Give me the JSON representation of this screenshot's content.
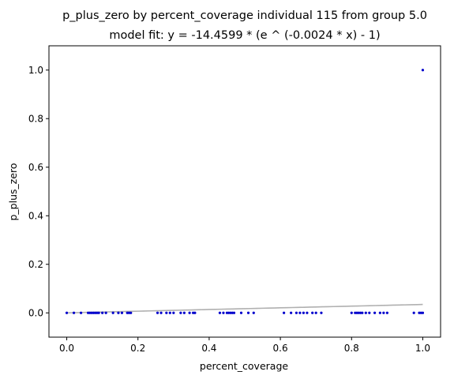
{
  "chart_data": {
    "type": "scatter",
    "title": "p_plus_zero by percent_coverage individual 115 from group 5.0",
    "subtitle": "model fit: y = -14.4599 * (e ^ (-0.0024 * x) - 1)",
    "xlabel": "percent_coverage",
    "ylabel": "p_plus_zero",
    "xlim": [
      -0.05,
      1.05
    ],
    "ylim": [
      -0.1,
      1.1
    ],
    "xticks": [
      0.0,
      0.2,
      0.4,
      0.6,
      0.8,
      1.0
    ],
    "xtick_labels": [
      "0.0",
      "0.2",
      "0.4",
      "0.6",
      "0.8",
      "1.0"
    ],
    "yticks": [
      0.0,
      0.2,
      0.4,
      0.6,
      0.8,
      1.0
    ],
    "ytick_labels": [
      "0.0",
      "0.2",
      "0.4",
      "0.6",
      "0.8",
      "1.0"
    ],
    "grid": false,
    "legend": "none",
    "point_color": "#0000cc",
    "fit_color": "#b0b0b0",
    "fit_model": {
      "a": -14.4599,
      "b": -0.0024
    },
    "series": [
      {
        "x": [
          0.0,
          0.02,
          0.04,
          0.06,
          0.065,
          0.07,
          0.075,
          0.08,
          0.085,
          0.09,
          0.1,
          0.11,
          0.13,
          0.145,
          0.155,
          0.17,
          0.175,
          0.18,
          0.255,
          0.265,
          0.28,
          0.29,
          0.3,
          0.32,
          0.33,
          0.345,
          0.355,
          0.36,
          0.43,
          0.44,
          0.45,
          0.455,
          0.46,
          0.465,
          0.47,
          0.49,
          0.51,
          0.525,
          0.61,
          0.63,
          0.645,
          0.655,
          0.665,
          0.675,
          0.69,
          0.7,
          0.715,
          0.8,
          0.81,
          0.815,
          0.82,
          0.825,
          0.83,
          0.84,
          0.85,
          0.865,
          0.88,
          0.89,
          0.9,
          0.975,
          0.99,
          0.995,
          1.0,
          1.0
        ],
        "y": [
          0,
          0,
          0,
          0,
          0,
          0,
          0,
          0,
          0,
          0,
          0,
          0,
          0,
          0,
          0,
          0,
          0,
          0,
          0,
          0,
          0,
          0,
          0,
          0,
          0,
          0,
          0,
          0,
          0,
          0,
          0,
          0,
          0,
          0,
          0,
          0,
          0,
          0,
          0,
          0,
          0,
          0,
          0,
          0,
          0,
          0,
          0,
          0,
          0,
          0,
          0,
          0,
          0,
          0,
          0,
          0,
          0,
          0,
          0,
          0,
          0,
          0,
          0,
          1.0
        ]
      }
    ]
  }
}
